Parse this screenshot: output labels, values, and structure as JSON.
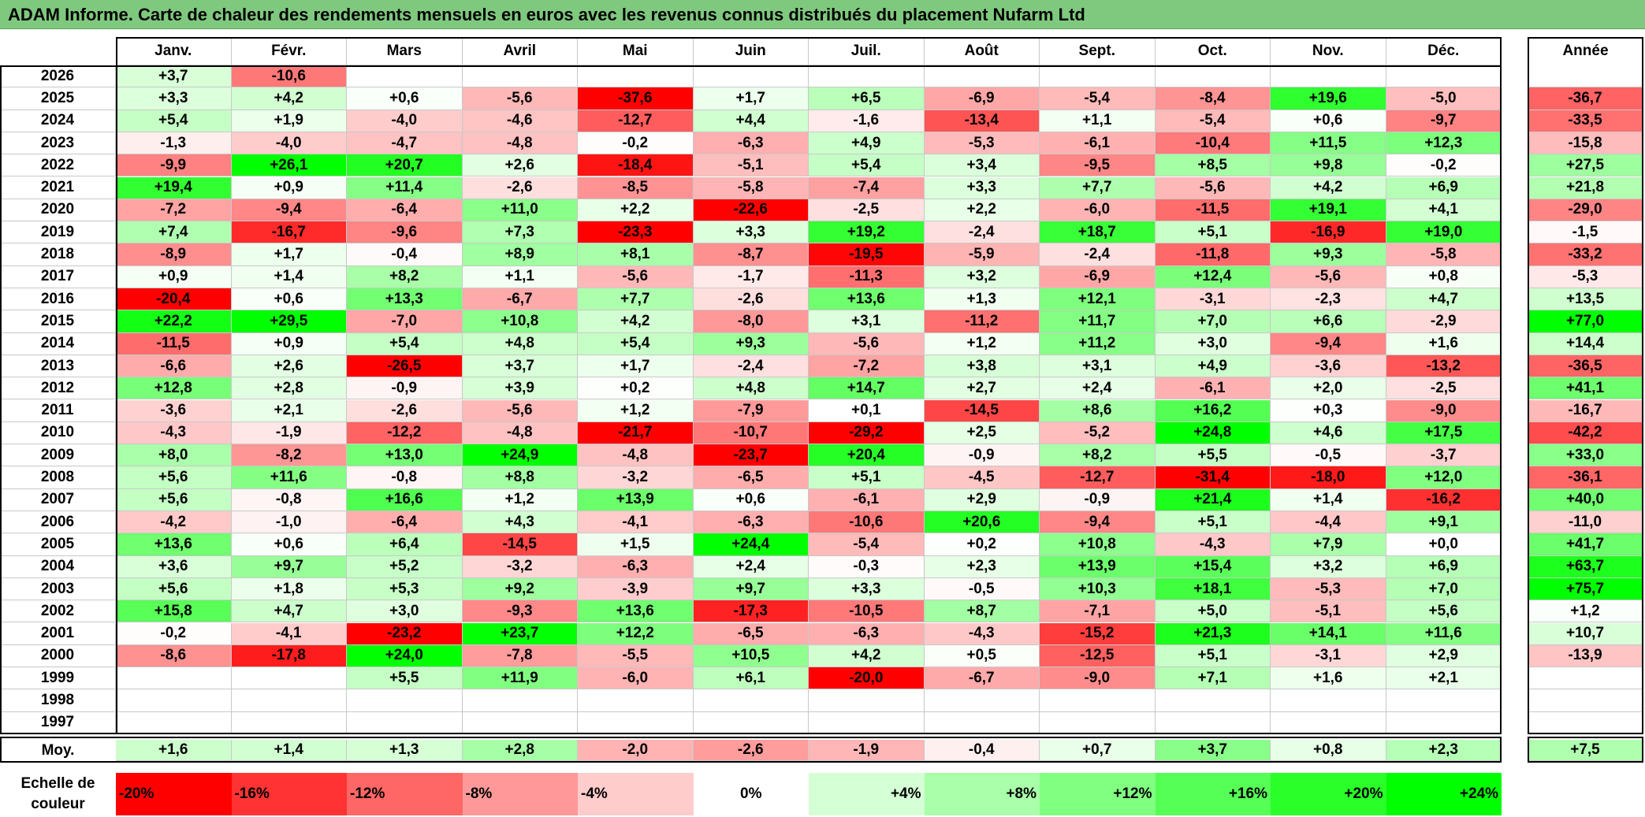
{
  "title": "ADAM Informe. Carte de chaleur des rendements mensuels en euros avec les revenus connus distribués du placement Nufarm Ltd",
  "chart_data": {
    "type": "heatmap",
    "months": [
      "Janv.",
      "Févr.",
      "Mars",
      "Avril",
      "Mai",
      "Juin",
      "Juil.",
      "Août",
      "Sept.",
      "Oct.",
      "Nov.",
      "Déc."
    ],
    "year_header": "Année",
    "rows": [
      {
        "year": "2026",
        "values": [
          "+3,7",
          "-10,6",
          "",
          "",
          "",
          "",
          "",
          "",
          "",
          "",
          "",
          ""
        ],
        "annual": ""
      },
      {
        "year": "2025",
        "values": [
          "+3,3",
          "+4,2",
          "+0,6",
          "-5,6",
          "-37,6",
          "+1,7",
          "+6,5",
          "-6,9",
          "-5,4",
          "-8,4",
          "+19,6",
          "-5,0"
        ],
        "annual": "-36,7"
      },
      {
        "year": "2024",
        "values": [
          "+5,4",
          "+1,9",
          "-4,0",
          "-4,6",
          "-12,7",
          "+4,4",
          "-1,6",
          "-13,4",
          "+1,1",
          "-5,4",
          "+0,6",
          "-9,7"
        ],
        "annual": "-33,5"
      },
      {
        "year": "2023",
        "values": [
          "-1,3",
          "-4,0",
          "-4,7",
          "-4,8",
          "-0,2",
          "-6,3",
          "+4,9",
          "-5,3",
          "-6,1",
          "-10,4",
          "+11,5",
          "+12,3"
        ],
        "annual": "-15,8"
      },
      {
        "year": "2022",
        "values": [
          "-9,9",
          "+26,1",
          "+20,7",
          "+2,6",
          "-18,4",
          "-5,1",
          "+5,4",
          "+3,4",
          "-9,5",
          "+8,5",
          "+9,8",
          "-0,2"
        ],
        "annual": "+27,5"
      },
      {
        "year": "2021",
        "values": [
          "+19,4",
          "+0,9",
          "+11,4",
          "-2,6",
          "-8,5",
          "-5,8",
          "-7,4",
          "+3,3",
          "+7,7",
          "-5,6",
          "+4,2",
          "+6,9"
        ],
        "annual": "+21,8"
      },
      {
        "year": "2020",
        "values": [
          "-7,2",
          "-9,4",
          "-6,4",
          "+11,0",
          "+2,2",
          "-22,6",
          "-2,5",
          "+2,2",
          "-6,0",
          "-11,5",
          "+19,1",
          "+4,1"
        ],
        "annual": "-29,0"
      },
      {
        "year": "2019",
        "values": [
          "+7,4",
          "-16,7",
          "-9,6",
          "+7,3",
          "-23,3",
          "+3,3",
          "+19,2",
          "-2,4",
          "+18,7",
          "+5,1",
          "-16,9",
          "+19,0"
        ],
        "annual": "-1,5"
      },
      {
        "year": "2018",
        "values": [
          "-8,9",
          "+1,7",
          "-0,4",
          "+8,9",
          "+8,1",
          "-8,7",
          "-19,5",
          "-5,9",
          "-2,4",
          "-11,8",
          "+9,3",
          "-5,8"
        ],
        "annual": "-33,2"
      },
      {
        "year": "2017",
        "values": [
          "+0,9",
          "+1,4",
          "+8,2",
          "+1,1",
          "-5,6",
          "-1,7",
          "-11,3",
          "+3,2",
          "-6,9",
          "+12,4",
          "-5,6",
          "+0,8"
        ],
        "annual": "-5,3"
      },
      {
        "year": "2016",
        "values": [
          "-20,4",
          "+0,6",
          "+13,3",
          "-6,7",
          "+7,7",
          "-2,6",
          "+13,6",
          "+1,3",
          "+12,1",
          "-3,1",
          "-2,3",
          "+4,7"
        ],
        "annual": "+13,5"
      },
      {
        "year": "2015",
        "values": [
          "+22,2",
          "+29,5",
          "-7,0",
          "+10,8",
          "+4,2",
          "-8,0",
          "+3,1",
          "-11,2",
          "+11,7",
          "+7,0",
          "+6,6",
          "-2,9"
        ],
        "annual": "+77,0"
      },
      {
        "year": "2014",
        "values": [
          "-11,5",
          "+0,9",
          "+5,4",
          "+4,8",
          "+5,4",
          "+9,3",
          "-5,6",
          "+1,2",
          "+11,2",
          "+3,0",
          "-9,4",
          "+1,6"
        ],
        "annual": "+14,4"
      },
      {
        "year": "2013",
        "values": [
          "-6,6",
          "+2,6",
          "-26,5",
          "+3,7",
          "+1,7",
          "-2,4",
          "-7,2",
          "+3,8",
          "+3,1",
          "+4,9",
          "-3,6",
          "-13,2"
        ],
        "annual": "-36,5"
      },
      {
        "year": "2012",
        "values": [
          "+12,8",
          "+2,8",
          "-0,9",
          "+3,9",
          "+0,2",
          "+4,8",
          "+14,7",
          "+2,7",
          "+2,4",
          "-6,1",
          "+2,0",
          "-2,5"
        ],
        "annual": "+41,1"
      },
      {
        "year": "2011",
        "values": [
          "-3,6",
          "+2,1",
          "-2,6",
          "-5,6",
          "+1,2",
          "-7,9",
          "+0,1",
          "-14,5",
          "+8,6",
          "+16,2",
          "+0,3",
          "-9,0"
        ],
        "annual": "-16,7"
      },
      {
        "year": "2010",
        "values": [
          "-4,3",
          "-1,9",
          "-12,2",
          "-4,8",
          "-21,7",
          "-10,7",
          "-29,2",
          "+2,5",
          "-5,2",
          "+24,8",
          "+4,6",
          "+17,5"
        ],
        "annual": "-42,2"
      },
      {
        "year": "2009",
        "values": [
          "+8,0",
          "-8,2",
          "+13,0",
          "+24,9",
          "-4,8",
          "-23,7",
          "+20,4",
          "-0,9",
          "+8,2",
          "+5,5",
          "-0,5",
          "-3,7"
        ],
        "annual": "+33,0"
      },
      {
        "year": "2008",
        "values": [
          "+5,6",
          "+11,6",
          "-0,8",
          "+8,8",
          "-3,2",
          "-6,5",
          "+5,1",
          "-4,5",
          "-12,7",
          "-31,4",
          "-18,0",
          "+12,0"
        ],
        "annual": "-36,1"
      },
      {
        "year": "2007",
        "values": [
          "+5,6",
          "-0,8",
          "+16,6",
          "+1,2",
          "+13,9",
          "+0,6",
          "-6,1",
          "+2,9",
          "-0,9",
          "+21,4",
          "+1,4",
          "-16,2"
        ],
        "annual": "+40,0"
      },
      {
        "year": "2006",
        "values": [
          "-4,2",
          "-1,0",
          "-6,4",
          "+4,3",
          "-4,1",
          "-6,3",
          "-10,6",
          "+20,6",
          "-9,4",
          "+5,1",
          "-4,4",
          "+9,1"
        ],
        "annual": "-11,0"
      },
      {
        "year": "2005",
        "values": [
          "+13,6",
          "+0,6",
          "+6,4",
          "-14,5",
          "+1,5",
          "+24,4",
          "-5,4",
          "+0,2",
          "+10,8",
          "-4,3",
          "+7,9",
          "+0,0"
        ],
        "annual": "+41,7"
      },
      {
        "year": "2004",
        "values": [
          "+3,6",
          "+9,7",
          "+5,2",
          "-3,2",
          "-6,3",
          "+2,4",
          "-0,3",
          "+2,3",
          "+13,9",
          "+15,4",
          "+3,2",
          "+6,9"
        ],
        "annual": "+63,7"
      },
      {
        "year": "2003",
        "values": [
          "+5,6",
          "+1,8",
          "+5,3",
          "+9,2",
          "-3,9",
          "+9,7",
          "+3,3",
          "-0,5",
          "+10,3",
          "+18,1",
          "-5,3",
          "+7,0"
        ],
        "annual": "+75,7"
      },
      {
        "year": "2002",
        "values": [
          "+15,8",
          "+4,7",
          "+3,0",
          "-9,3",
          "+13,6",
          "-17,3",
          "-10,5",
          "+8,7",
          "-7,1",
          "+5,0",
          "-5,1",
          "+5,6"
        ],
        "annual": "+1,2"
      },
      {
        "year": "2001",
        "values": [
          "-0,2",
          "-4,1",
          "-23,2",
          "+23,7",
          "+12,2",
          "-6,5",
          "-6,3",
          "-4,3",
          "-15,2",
          "+21,3",
          "+14,1",
          "+11,6"
        ],
        "annual": "+10,7"
      },
      {
        "year": "2000",
        "values": [
          "-8,6",
          "-17,8",
          "+24,0",
          "-7,8",
          "-5,5",
          "+10,5",
          "+4,2",
          "+0,5",
          "-12,5",
          "+5,1",
          "-3,1",
          "+2,9"
        ],
        "annual": "-13,9"
      },
      {
        "year": "1999",
        "values": [
          "",
          "",
          "+5,5",
          "+11,9",
          "-6,0",
          "+6,1",
          "-20,0",
          "-6,7",
          "-9,0",
          "+7,1",
          "+1,6",
          "+2,1"
        ],
        "annual": ""
      },
      {
        "year": "1998",
        "values": [
          "",
          "",
          "",
          "",
          "",
          "",
          "",
          "",
          "",
          "",
          "",
          ""
        ],
        "annual": ""
      },
      {
        "year": "1997",
        "values": [
          "",
          "",
          "",
          "",
          "",
          "",
          "",
          "",
          "",
          "",
          "",
          ""
        ],
        "annual": ""
      }
    ],
    "average": {
      "label": "Moy.",
      "values": [
        "+1,6",
        "+1,4",
        "+1,3",
        "+2,8",
        "-2,0",
        "-2,6",
        "-1,9",
        "-0,4",
        "+0,7",
        "+3,7",
        "+0,8",
        "+2,3"
      ],
      "annual": "+7,5"
    },
    "legend": {
      "label": "Echelle de couleur",
      "entries": [
        "-20%",
        "-16%",
        "-12%",
        "-8%",
        "-4%",
        "0%",
        "+4%",
        "+8%",
        "+12%",
        "+16%",
        "+20%",
        "+24%"
      ],
      "values": [
        -20,
        -16,
        -12,
        -8,
        -4,
        0,
        4,
        8,
        12,
        16,
        20,
        24
      ]
    },
    "color_scale": {
      "negative": "#ff0000",
      "zero": "#ffffff",
      "positive": "#00ff00",
      "negative_limit": -20,
      "positive_limit": 24
    }
  }
}
